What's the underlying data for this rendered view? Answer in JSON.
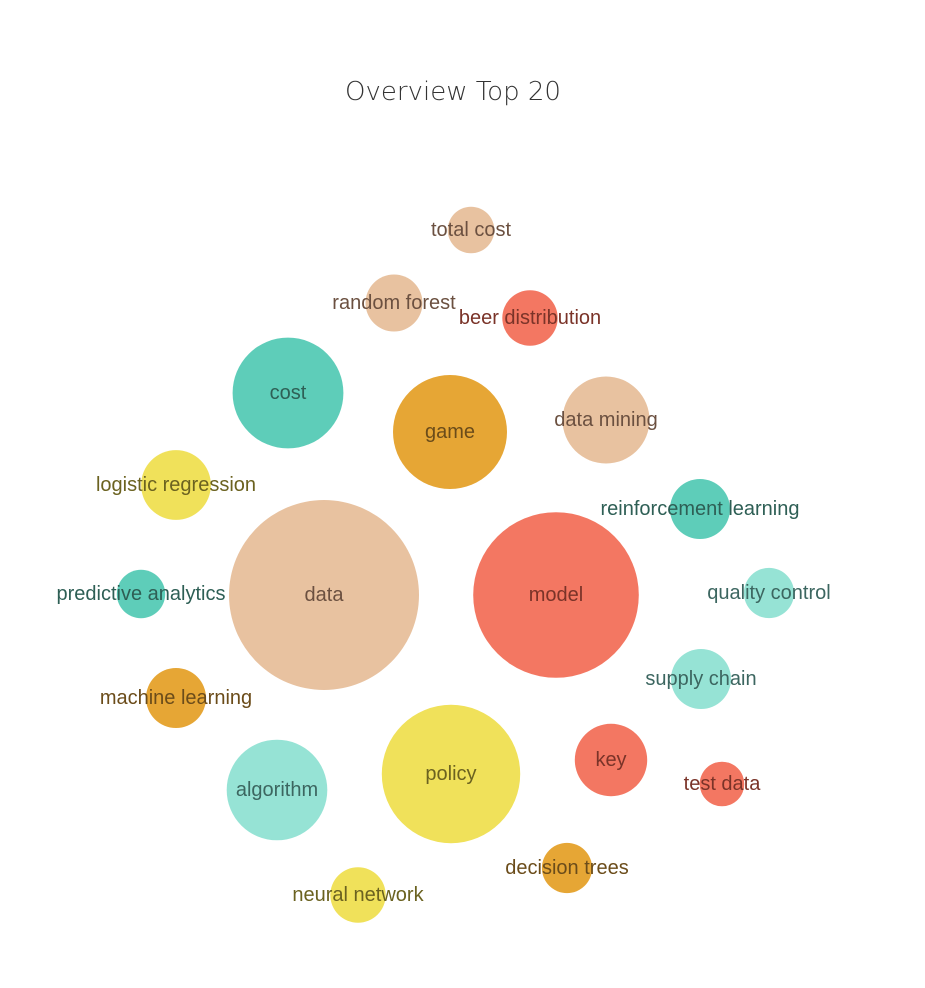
{
  "chart_data": {
    "type": "bubble",
    "title": "Overview Top 20",
    "palette": {
      "peach": "#E8C2A0",
      "coral": "#F37762",
      "teal": "#5ECDB9",
      "mint": "#96E3D5",
      "gold": "#E6A635",
      "yellow": "#F0E15A"
    },
    "label_colors": {
      "peach": "#6B5040",
      "coral": "#7A3328",
      "teal": "#2E5F55",
      "mint": "#3C6660",
      "gold": "#6B4C1A",
      "yellow": "#6B6220"
    },
    "bubbles": [
      {
        "label": "data",
        "value": 100,
        "color": "peach"
      },
      {
        "label": "model",
        "value": 76,
        "color": "coral"
      },
      {
        "label": "policy",
        "value": 53,
        "color": "yellow"
      },
      {
        "label": "game",
        "value": 36,
        "color": "gold"
      },
      {
        "label": "cost",
        "value": 34,
        "color": "teal"
      },
      {
        "label": "algorithm",
        "value": 28,
        "color": "mint"
      },
      {
        "label": "data mining",
        "value": 21,
        "color": "peach"
      },
      {
        "label": "key",
        "value": 14.5,
        "color": "coral"
      },
      {
        "label": "logistic regression",
        "value": 13.5,
        "color": "yellow"
      },
      {
        "label": "reinforcement learning",
        "value": 10,
        "color": "teal"
      },
      {
        "label": "supply chain",
        "value": 10,
        "color": "mint"
      },
      {
        "label": "machine learning",
        "value": 10,
        "color": "gold"
      },
      {
        "label": "random forest",
        "value": 9,
        "color": "peach"
      },
      {
        "label": "beer distribution",
        "value": 8.5,
        "color": "coral"
      },
      {
        "label": "neural network",
        "value": 8.5,
        "color": "yellow"
      },
      {
        "label": "quality control",
        "value": 7,
        "color": "mint"
      },
      {
        "label": "predictive analytics",
        "value": 6.5,
        "color": "teal"
      },
      {
        "label": "decision trees",
        "value": 7,
        "color": "gold"
      },
      {
        "label": "total cost",
        "value": 6,
        "color": "peach"
      },
      {
        "label": "test data",
        "value": 5.5,
        "color": "coral"
      }
    ]
  }
}
